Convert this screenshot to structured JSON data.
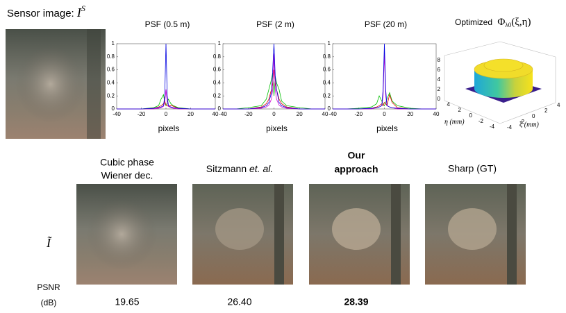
{
  "sensor": {
    "label": "Sensor image:",
    "symbol": "I",
    "superscript": "S"
  },
  "chart_data": [
    {
      "type": "line",
      "title": "PSF (0.5 m)",
      "x_label": "pixels",
      "x": [
        -40,
        -30,
        -20,
        -10,
        -6,
        -4,
        -2,
        -1,
        0,
        1,
        2,
        4,
        6,
        10,
        20,
        30,
        40
      ],
      "series": [
        {
          "color": "#00c000",
          "values": [
            0,
            0,
            0,
            0.02,
            0.05,
            0.15,
            0.22,
            0.1,
            0.05,
            0.1,
            0.15,
            0.08,
            0.05,
            0.02,
            0,
            0,
            0
          ]
        },
        {
          "color": "#e00000",
          "values": [
            0,
            0,
            0,
            0.01,
            0.03,
            0.05,
            0.08,
            0.12,
            0.06,
            0.05,
            0.04,
            0.06,
            0.04,
            0.01,
            0,
            0,
            0
          ]
        },
        {
          "color": "#d000d0",
          "values": [
            0,
            0,
            0,
            0,
            0.01,
            0.02,
            0.04,
            0.1,
            0.3,
            0.1,
            0.04,
            0.02,
            0.01,
            0,
            0,
            0,
            0
          ]
        },
        {
          "color": "#0000e0",
          "values": [
            0,
            0,
            0,
            0.01,
            0.02,
            0.03,
            0.05,
            0.2,
            1,
            0.2,
            0.05,
            0.03,
            0.02,
            0.01,
            0,
            0,
            0
          ]
        }
      ],
      "xlim": [
        -40,
        40
      ],
      "xticks": [
        -40,
        -20,
        0,
        20,
        40
      ],
      "ylim": [
        0,
        1
      ],
      "yticks": [
        0,
        0.2,
        0.4,
        0.6,
        0.8,
        1
      ]
    },
    {
      "type": "line",
      "title": "PSF (2 m)",
      "x_label": "pixels",
      "x": [
        -40,
        -30,
        -20,
        -10,
        -6,
        -4,
        -2,
        -1,
        0,
        1,
        2,
        4,
        6,
        10,
        20,
        30,
        40
      ],
      "series": [
        {
          "color": "#00c000",
          "values": [
            0,
            0,
            0.02,
            0.05,
            0.15,
            0.3,
            0.45,
            0.55,
            0.2,
            0.5,
            0.4,
            0.3,
            0.12,
            0.05,
            0.02,
            0,
            0
          ]
        },
        {
          "color": "#e00000",
          "values": [
            0,
            0,
            0,
            0.03,
            0.08,
            0.15,
            0.3,
            0.4,
            0.6,
            0.4,
            0.3,
            0.15,
            0.08,
            0.03,
            0,
            0,
            0
          ]
        },
        {
          "color": "#d000d0",
          "values": [
            0,
            0,
            0,
            0.01,
            0.03,
            0.06,
            0.15,
            0.3,
            0.85,
            0.3,
            0.15,
            0.06,
            0.03,
            0.01,
            0,
            0,
            0
          ]
        },
        {
          "color": "#0000e0",
          "values": [
            0,
            0,
            0,
            0.02,
            0.05,
            0.1,
            0.25,
            0.6,
            1,
            0.5,
            0.3,
            0.1,
            0.05,
            0.02,
            0,
            0,
            0
          ]
        }
      ],
      "xlim": [
        -40,
        40
      ],
      "xticks": [
        -40,
        -20,
        0,
        20,
        40
      ],
      "ylim": [
        0,
        1
      ],
      "yticks": [
        0,
        0.2,
        0.4,
        0.6,
        0.8,
        1
      ]
    },
    {
      "type": "line",
      "title": "PSF (20 m)",
      "x_label": "pixels",
      "x": [
        -40,
        -30,
        -20,
        -10,
        -6,
        -4,
        -2,
        -1,
        0,
        1,
        2,
        4,
        6,
        10,
        20,
        30,
        40
      ],
      "series": [
        {
          "color": "#00c000",
          "values": [
            0,
            0,
            0.01,
            0.03,
            0.08,
            0.2,
            0.12,
            0.08,
            0.05,
            0.1,
            0.15,
            0.25,
            0.12,
            0.05,
            0.01,
            0,
            0
          ]
        },
        {
          "color": "#e00000",
          "values": [
            0,
            0,
            0,
            0.01,
            0.03,
            0.05,
            0.08,
            0.05,
            0.1,
            0.08,
            0.05,
            0.22,
            0.1,
            0.02,
            0,
            0,
            0
          ]
        },
        {
          "color": "#d000d0",
          "values": [
            0,
            0,
            0,
            0,
            0.02,
            0.03,
            0.05,
            0.2,
            0.85,
            0.2,
            0.05,
            0.03,
            0.02,
            0,
            0,
            0,
            0
          ]
        },
        {
          "color": "#0000e0",
          "values": [
            0,
            0,
            0,
            0.01,
            0.02,
            0.03,
            0.05,
            0.3,
            1,
            0.3,
            0.05,
            0.03,
            0.02,
            0.01,
            0,
            0,
            0
          ]
        }
      ],
      "xlim": [
        -40,
        40
      ],
      "xticks": [
        -40,
        -20,
        0,
        20,
        40
      ],
      "ylim": [
        0,
        1
      ],
      "yticks": [
        0,
        0.2,
        0.4,
        0.6,
        0.8,
        1
      ]
    }
  ],
  "surface": {
    "title": "Optimized",
    "symbol": "Φ",
    "subscript": "λ0",
    "args": "(ξ,η)",
    "zticks": [
      0,
      2,
      4,
      6,
      8
    ],
    "eta_ticks": [
      -4,
      -2,
      0,
      2,
      4
    ],
    "xi_ticks": [
      -4,
      -2,
      0,
      2,
      4
    ],
    "eta_label": "η (mm)",
    "xi_label": "ξ (mm)"
  },
  "row_labels": {
    "image": "Ĩ",
    "psnr": "PSNR",
    "unit": "(dB)"
  },
  "methods": [
    {
      "lines": [
        "Cubic phase",
        "Wiener dec."
      ],
      "psnr": "19.65"
    },
    {
      "lines": [
        "Sitzmann"
      ],
      "emphasis": "et. al.",
      "psnr": "26.40"
    },
    {
      "lines": [
        "Our",
        "approach"
      ],
      "psnr": "28.39"
    },
    {
      "lines": [
        "Sharp (GT)"
      ]
    }
  ]
}
